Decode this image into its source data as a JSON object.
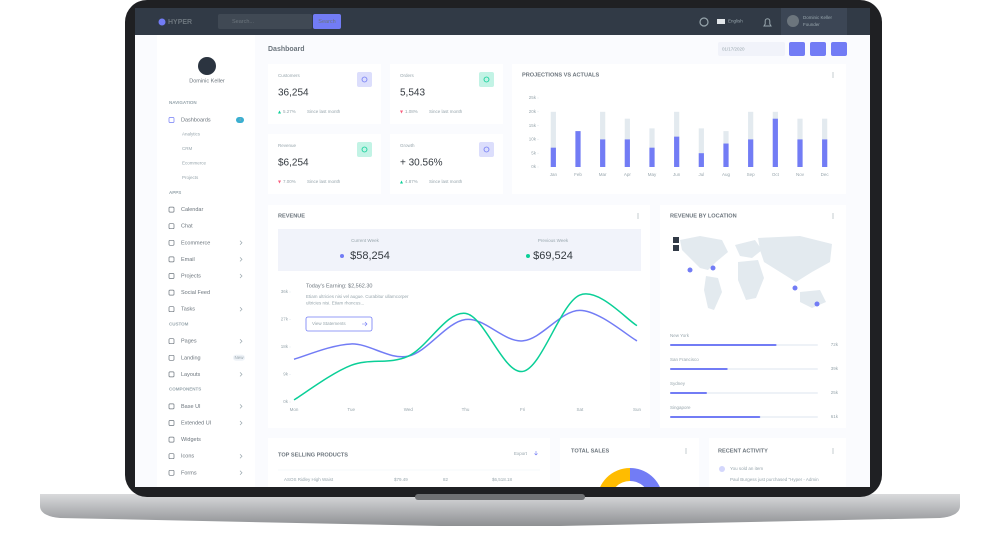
{
  "topbar": {
    "logo": "HYPER",
    "search_placeholder": "Search...",
    "search_button": "Search",
    "language": "English",
    "user_name": "Dominic Keller",
    "user_role": "Founder"
  },
  "sidebar": {
    "user_name": "Dominic Keller",
    "sections": [
      {
        "title": "NAVIGATION",
        "items": [
          {
            "label": "Dashboards",
            "badge": 4,
            "active": true,
            "children": [
              {
                "label": "Analytics"
              },
              {
                "label": "CRM"
              },
              {
                "label": "Ecommerce",
                "active": true
              },
              {
                "label": "Projects"
              }
            ]
          }
        ]
      },
      {
        "title": "APPS",
        "items": [
          {
            "label": "Calendar"
          },
          {
            "label": "Chat"
          },
          {
            "label": "Ecommerce",
            "expandable": true
          },
          {
            "label": "Email",
            "expandable": true
          },
          {
            "label": "Projects",
            "expandable": true
          },
          {
            "label": "Social Feed"
          },
          {
            "label": "Tasks",
            "expandable": true
          }
        ]
      },
      {
        "title": "CUSTOM",
        "items": [
          {
            "label": "Pages",
            "expandable": true
          },
          {
            "label": "Landing",
            "badge": "New"
          },
          {
            "label": "Layouts",
            "expandable": true
          }
        ]
      },
      {
        "title": "COMPONENTS",
        "items": [
          {
            "label": "Base UI",
            "expandable": true
          },
          {
            "label": "Extended UI",
            "expandable": true
          },
          {
            "label": "Widgets"
          },
          {
            "label": "Icons",
            "expandable": true
          },
          {
            "label": "Forms",
            "expandable": true
          }
        ]
      }
    ]
  },
  "header": {
    "title": "Dashboard",
    "date": "01/17/2020"
  },
  "stats": [
    {
      "label": "Customers",
      "value": "36,254",
      "change": "5.27%",
      "trend": "up",
      "note": "Since last month",
      "color": "#727cf5"
    },
    {
      "label": "Orders",
      "value": "5,543",
      "change": "1.08%",
      "trend": "down",
      "note": "Since last month",
      "color": "#0acf97"
    },
    {
      "label": "Revenue",
      "value": "$6,254",
      "change": "7.00%",
      "trend": "down",
      "note": "Since last month",
      "color": "#0acf97"
    },
    {
      "label": "Growth",
      "value": "+ 30.56%",
      "change": "4.87%",
      "trend": "up",
      "note": "Since last month",
      "color": "#727cf5"
    }
  ],
  "projections": {
    "title": "PROJECTIONS VS ACTUALS",
    "type": "bar",
    "categories": [
      "Jan",
      "Feb",
      "Mar",
      "Apr",
      "May",
      "Jun",
      "Jul",
      "Aug",
      "Sep",
      "Oct",
      "Nov",
      "Dec"
    ],
    "series": [
      {
        "color": "#e3eaef",
        "values": [
          20,
          13,
          20,
          17.5,
          14,
          20,
          14,
          13,
          20,
          20,
          17.5,
          17.5
        ]
      },
      {
        "color": "#727cf5",
        "values": [
          7,
          13,
          10,
          10,
          7,
          11,
          5,
          8.5,
          10,
          17.5,
          10,
          10
        ]
      }
    ],
    "ylim": [
      0,
      25
    ],
    "yticks": [
      {
        "value": 0,
        "label": "0k"
      },
      {
        "value": 5,
        "label": "5k"
      },
      {
        "value": 10,
        "label": "10k"
      },
      {
        "value": 15,
        "label": "15k"
      },
      {
        "value": 20,
        "label": "20k"
      },
      {
        "value": 25,
        "label": "25k"
      }
    ]
  },
  "revenue": {
    "title": "REVENUE",
    "current_label": "Current Week",
    "current_value": "$58,254",
    "previous_label": "Previous Week",
    "previous_value": "$69,524",
    "chart": {
      "type": "line",
      "categories": [
        "Mon",
        "Tue",
        "Wed",
        "Thu",
        "Fri",
        "Sat",
        "Sun"
      ],
      "series": [
        {
          "color": "#727cf5",
          "values": [
            14,
            19,
            15,
            27,
            20,
            30,
            20
          ]
        },
        {
          "color": "#0acf97",
          "values": [
            0.7,
            12,
            15,
            29,
            10,
            35,
            25
          ]
        }
      ],
      "ylim": [
        0,
        36
      ],
      "yticks": [
        {
          "value": 0,
          "label": "0k"
        },
        {
          "value": 9,
          "label": "9k"
        },
        {
          "value": 18,
          "label": "18k"
        },
        {
          "value": 27,
          "label": "27k"
        },
        {
          "value": 36,
          "label": "36k"
        }
      ]
    },
    "annotation": {
      "title": "Today's Earning: $2,562.30",
      "lines": [
        "Etiam ultricies nisi vel augue. Curabitur ullamcorper",
        "ultricies nisi. Etiam rhoncus..."
      ],
      "button": "View Statements"
    }
  },
  "location": {
    "title": "REVENUE BY LOCATION",
    "color": "#727cf5",
    "locations": [
      {
        "name": "New York",
        "value": 72,
        "label": "72k"
      },
      {
        "name": "San Francisco",
        "value": 39,
        "label": "39k"
      },
      {
        "name": "Sydney",
        "value": 25,
        "label": "25k"
      },
      {
        "name": "Singapore",
        "value": 61,
        "label": "61k"
      }
    ]
  },
  "products": {
    "title": "TOP SELLING PRODUCTS",
    "export": "Export",
    "rows": [
      [
        "ASOS Ridley High Waist",
        "$79.49",
        "82",
        "$6,518.18"
      ]
    ]
  },
  "total_sales": {
    "title": "TOTAL SALES",
    "type": "pie",
    "values": [
      45,
      30,
      25
    ],
    "colors": [
      "#727cf5",
      "#fa5c7c",
      "#ffbc00"
    ]
  },
  "activity": {
    "title": "RECENT ACTIVITY",
    "items": [
      {
        "title": "You sold an item",
        "text": "Paul Burgess just purchased \"Hyper - Admin"
      }
    ]
  }
}
